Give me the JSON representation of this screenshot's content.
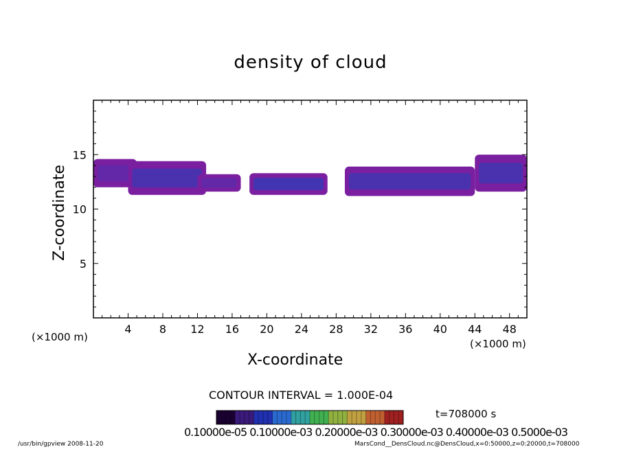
{
  "title": "density of cloud",
  "xlabel": "X-coordinate",
  "ylabel": "Z-coordinate",
  "x_unit_left": "(×1000 m)",
  "x_unit_right": "(×1000 m)",
  "contour_interval": "CONTOUR INTERVAL = 1.000E-04",
  "time_label": "t=708000  s",
  "colorbar_labels_text": "0.10000e-05 0.10000e-03 0.20000e-03 0.30000e-03 0.40000e-03 0.5000e-03",
  "footer_left": "/usr/bin/gpview   2008-11-20",
  "footer_right": "MarsCond__DensCloud.nc@DensCloud,x=0:50000,z=0:20000,t=708000",
  "chart_data": {
    "type": "heatmap",
    "title": "density of cloud",
    "xlabel": "X-coordinate",
    "ylabel": "Z-coordinate",
    "xlim": [
      0,
      50
    ],
    "ylim": [
      0,
      20
    ],
    "x_ticks": [
      4,
      8,
      12,
      16,
      20,
      24,
      28,
      32,
      36,
      40,
      44,
      48
    ],
    "y_ticks": [
      5,
      10,
      15
    ],
    "colorbar_colors": [
      "#1a0030",
      "#3a1a7a",
      "#2030b0",
      "#2a6ad0",
      "#30a0a0",
      "#40b050",
      "#90b040",
      "#c0a040",
      "#c06030",
      "#a02020"
    ],
    "clouds": [
      {
        "x": [
          0,
          5
        ],
        "z": [
          12.0,
          14.6
        ],
        "level": 0.3
      },
      {
        "x": [
          4,
          13
        ],
        "z": [
          11.3,
          14.4
        ],
        "level": 0.6
      },
      {
        "x": [
          12,
          17
        ],
        "z": [
          11.6,
          13.2
        ],
        "level": 0.3
      },
      {
        "x": [
          18,
          27
        ],
        "z": [
          11.3,
          13.3
        ],
        "level": 0.7
      },
      {
        "x": [
          29,
          44
        ],
        "z": [
          11.2,
          13.9
        ],
        "level": 0.6
      },
      {
        "x": [
          44,
          50
        ],
        "z": [
          11.6,
          15.0
        ],
        "level": 0.6
      }
    ]
  }
}
